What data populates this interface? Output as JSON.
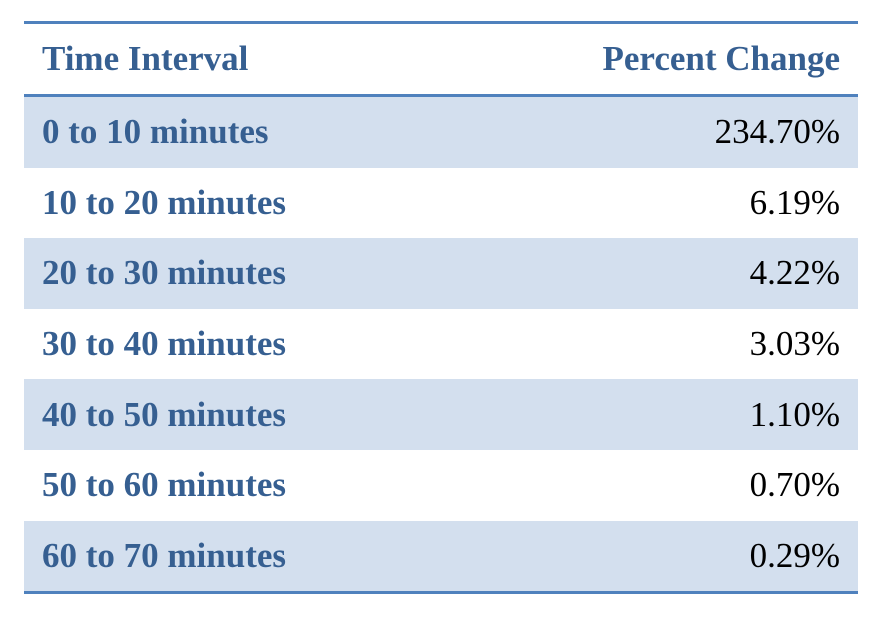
{
  "table": {
    "headers": {
      "interval": "Time Interval",
      "change": "Percent Change"
    },
    "rows": [
      {
        "interval": "0 to 10 minutes",
        "change": "234.70%"
      },
      {
        "interval": "10 to 20 minutes",
        "change": "6.19%"
      },
      {
        "interval": "20 to 30 minutes",
        "change": "4.22%"
      },
      {
        "interval": "30 to 40 minutes",
        "change": "3.03%"
      },
      {
        "interval": "40 to 50 minutes",
        "change": "1.10%"
      },
      {
        "interval": "50 to 60 minutes",
        "change": "0.70%"
      },
      {
        "interval": "60 to 70 minutes",
        "change": "0.29%"
      }
    ]
  },
  "colors": {
    "accent": "#4f81bd",
    "header_text": "#365f91",
    "band": "#d3dfee"
  }
}
